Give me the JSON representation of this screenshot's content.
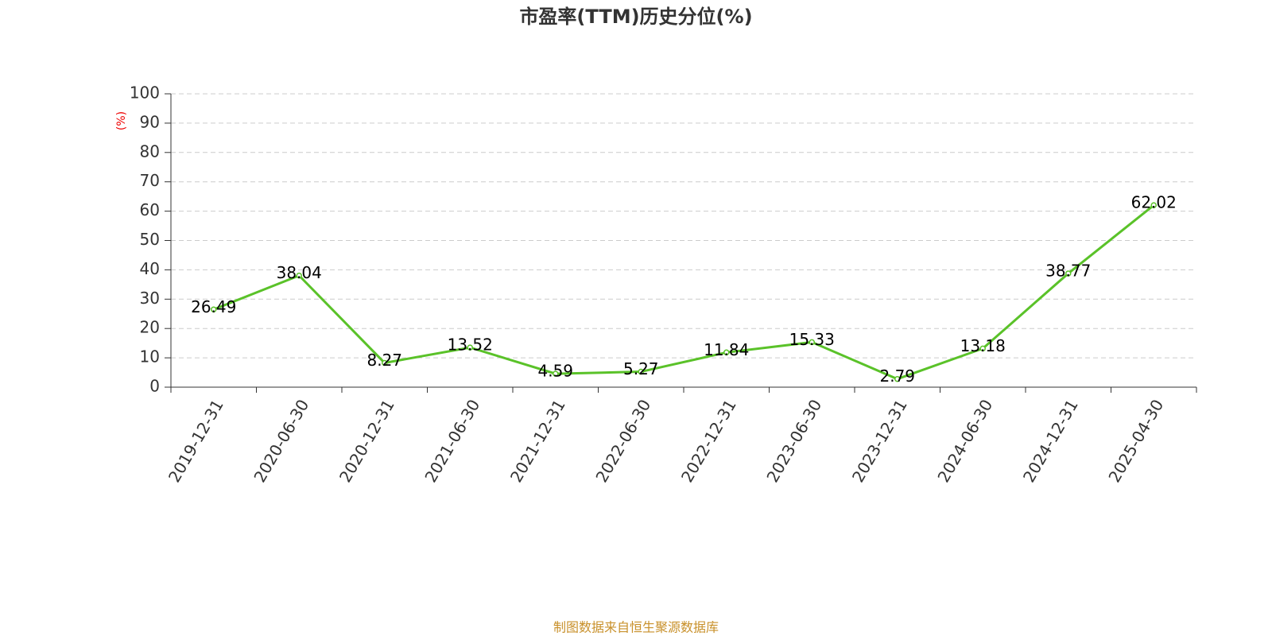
{
  "chart_data": {
    "type": "line",
    "title": "市盈率(TTM)历史分位(%)",
    "y_label": "(%)",
    "source": "制图数据来自恒生聚源数据库",
    "categories": [
      "2019-12-31",
      "2020-06-30",
      "2020-12-31",
      "2021-06-30",
      "2021-12-31",
      "2022-06-30",
      "2022-12-31",
      "2023-06-30",
      "2023-12-31",
      "2024-06-30",
      "2024-12-31",
      "2025-04-30"
    ],
    "series": [
      {
        "name": "市盈率(TTM)历史分位",
        "color": "#5ac229",
        "values": [
          26.49,
          38.04,
          8.27,
          13.52,
          4.59,
          5.27,
          11.84,
          15.33,
          2.79,
          13.18,
          38.77,
          62.02
        ]
      }
    ],
    "ylim": [
      0,
      100
    ],
    "yticks": [
      0,
      10,
      20,
      30,
      40,
      50,
      60,
      70,
      80,
      90,
      100
    ],
    "grid": true
  }
}
